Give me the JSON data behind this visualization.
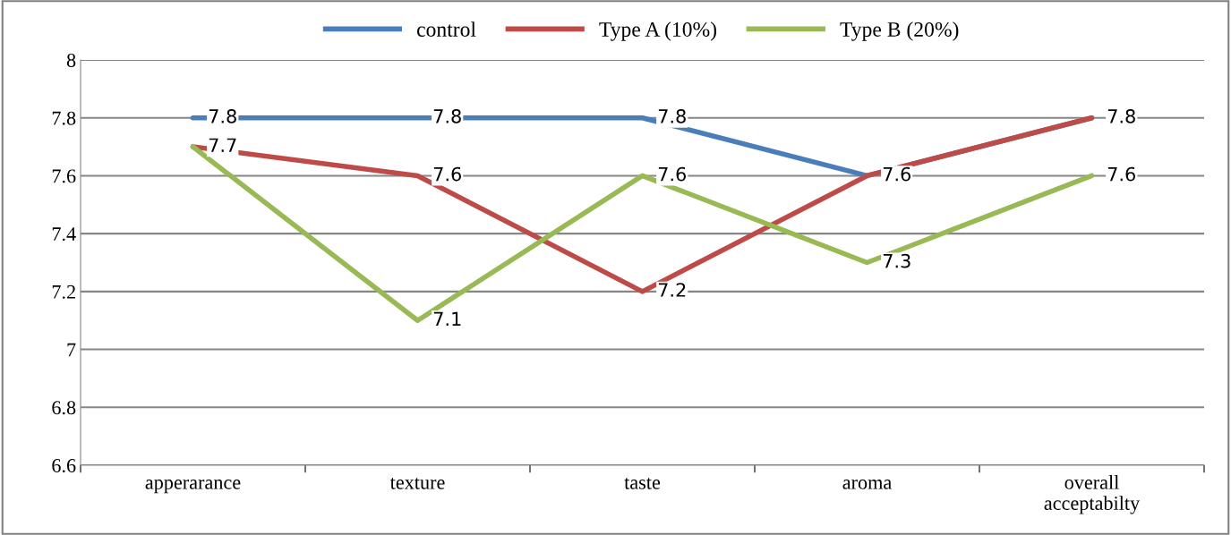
{
  "chart_data": {
    "type": "line",
    "categories": [
      "apperarance",
      "texture",
      "taste",
      "aroma",
      "overall acceptabilty"
    ],
    "series": [
      {
        "name": "control",
        "color": "#4a7ebb",
        "values": [
          7.8,
          7.8,
          7.8,
          7.6,
          7.8
        ],
        "value_labels": [
          "7.8",
          "7.8",
          "7.8",
          "7.6",
          "7.8"
        ]
      },
      {
        "name": "Type A (10%)",
        "color": "#be4b48",
        "values": [
          7.7,
          7.6,
          7.2,
          7.6,
          7.8
        ],
        "value_labels": [
          "7.7",
          "7.6",
          "7.2",
          null,
          null
        ]
      },
      {
        "name": "Type B (20%)",
        "color": "#98b954",
        "values": [
          7.7,
          7.1,
          7.6,
          7.3,
          7.6
        ],
        "value_labels": [
          null,
          "7.1",
          "7.6",
          "7.3",
          "7.6"
        ]
      }
    ],
    "ylim": [
      6.6,
      8
    ],
    "yticks": [
      6.6,
      6.8,
      7,
      7.2,
      7.4,
      7.6,
      7.8,
      8
    ],
    "grid": "y",
    "legend": "top",
    "marker": "none",
    "line_style": "solid"
  }
}
